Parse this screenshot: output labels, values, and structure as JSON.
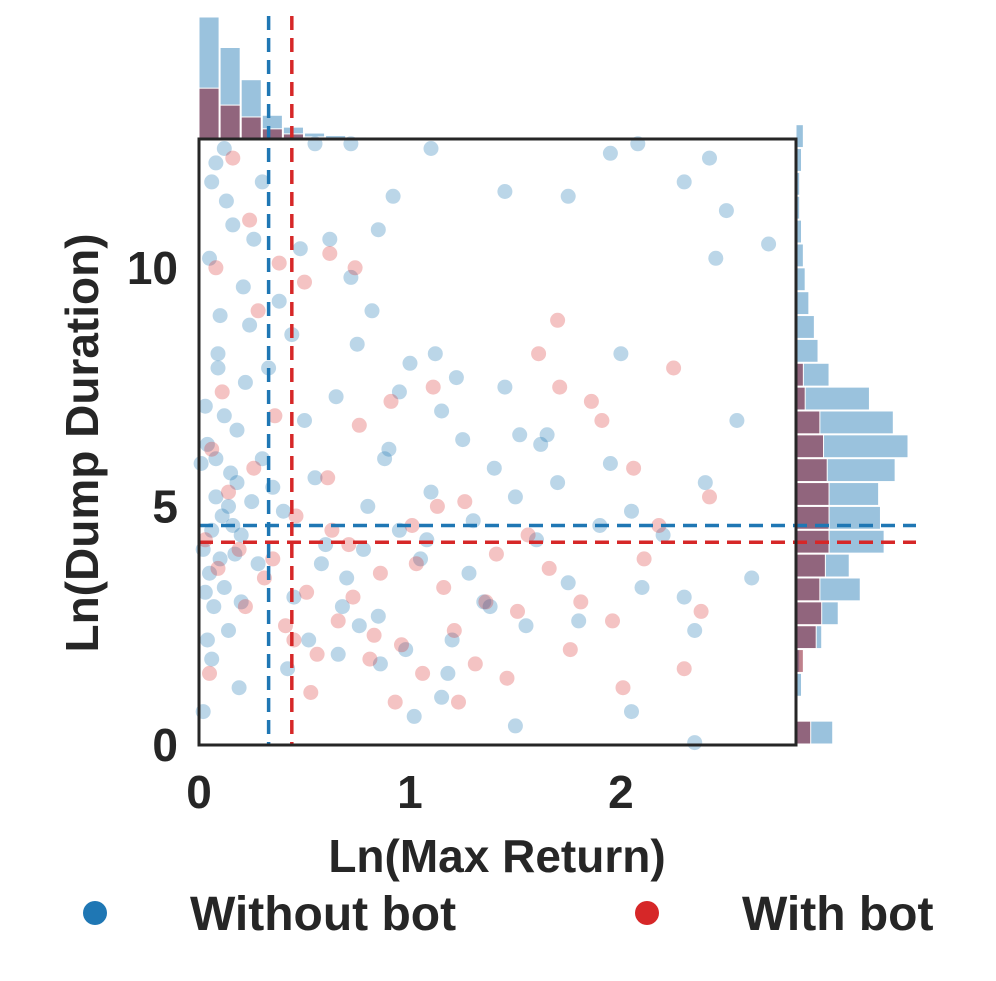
{
  "chart_data": {
    "type": "scatter",
    "title": "",
    "xlabel": "Ln(Max Return)",
    "ylabel": "Ln(Dump Duration)",
    "xlim": [
      0,
      2.83
    ],
    "ylim": [
      0,
      12.7
    ],
    "xticks": [
      {
        "value": 0,
        "label": "0"
      },
      {
        "value": 1,
        "label": "1"
      },
      {
        "value": 2,
        "label": "2"
      }
    ],
    "yticks": [
      {
        "value": 0,
        "label": "0"
      },
      {
        "value": 5,
        "label": "5"
      },
      {
        "value": 10,
        "label": "10"
      }
    ],
    "grid": false,
    "legend_placement": "bottom",
    "marginal_histograms": true,
    "series": [
      {
        "name": "Without bot",
        "color": "#1f77b4",
        "mean_x": 0.33,
        "mean_y": 4.6,
        "points": [
          [
            0.02,
            4.1
          ],
          [
            0.05,
            3.6
          ],
          [
            0.08,
            5.2
          ],
          [
            0.11,
            4.8
          ],
          [
            0.04,
            6.3
          ],
          [
            0.15,
            5.7
          ],
          [
            0.2,
            4.4
          ],
          [
            0.07,
            2.9
          ],
          [
            0.12,
            3.3
          ],
          [
            0.03,
            7.1
          ],
          [
            0.18,
            6.6
          ],
          [
            0.09,
            8.2
          ],
          [
            0.25,
            5.1
          ],
          [
            0.06,
            1.8
          ],
          [
            0.14,
            2.4
          ],
          [
            0.22,
            7.6
          ],
          [
            0.01,
            5.9
          ],
          [
            0.17,
            4.0
          ],
          [
            0.28,
            3.8
          ],
          [
            0.1,
            9.0
          ],
          [
            0.05,
            10.2
          ],
          [
            0.13,
            11.4
          ],
          [
            0.08,
            12.2
          ],
          [
            0.02,
            0.7
          ],
          [
            0.19,
            1.2
          ],
          [
            0.24,
            8.8
          ],
          [
            0.3,
            6.0
          ],
          [
            0.35,
            5.4
          ],
          [
            0.4,
            4.9
          ],
          [
            0.45,
            3.1
          ],
          [
            0.5,
            6.8
          ],
          [
            0.55,
            5.6
          ],
          [
            0.6,
            4.2
          ],
          [
            0.65,
            7.3
          ],
          [
            0.7,
            3.5
          ],
          [
            0.75,
            8.4
          ],
          [
            0.8,
            5.0
          ],
          [
            0.85,
            2.7
          ],
          [
            0.9,
            6.2
          ],
          [
            0.95,
            4.5
          ],
          [
            1.0,
            8.0
          ],
          [
            1.05,
            3.9
          ],
          [
            1.1,
            5.3
          ],
          [
            1.15,
            7.0
          ],
          [
            1.2,
            2.2
          ],
          [
            1.25,
            6.4
          ],
          [
            1.3,
            4.7
          ],
          [
            1.35,
            3.0
          ],
          [
            1.4,
            5.8
          ],
          [
            1.45,
            7.5
          ],
          [
            1.5,
            5.2
          ],
          [
            1.55,
            2.5
          ],
          [
            1.6,
            4.3
          ],
          [
            1.65,
            6.5
          ],
          [
            1.7,
            5.5
          ],
          [
            1.75,
            3.4
          ],
          [
            1.8,
            2.6
          ],
          [
            1.9,
            4.6
          ],
          [
            1.95,
            5.9
          ],
          [
            2.0,
            8.2
          ],
          [
            2.05,
            4.9
          ],
          [
            2.1,
            3.3
          ],
          [
            2.2,
            4.4
          ],
          [
            2.3,
            3.1
          ],
          [
            2.35,
            2.4
          ],
          [
            2.4,
            5.5
          ],
          [
            2.45,
            10.2
          ],
          [
            2.5,
            11.2
          ],
          [
            2.55,
            6.8
          ],
          [
            2.62,
            3.5
          ],
          [
            2.7,
            10.5
          ],
          [
            0.38,
            9.3
          ],
          [
            0.48,
            10.4
          ],
          [
            0.62,
            10.6
          ],
          [
            0.72,
            9.8
          ],
          [
            0.85,
            10.8
          ],
          [
            0.92,
            11.5
          ],
          [
            1.1,
            12.5
          ],
          [
            1.45,
            11.6
          ],
          [
            1.75,
            11.5
          ],
          [
            1.95,
            12.4
          ],
          [
            2.08,
            12.6
          ],
          [
            2.3,
            11.8
          ],
          [
            2.42,
            12.3
          ],
          [
            0.55,
            12.6
          ],
          [
            0.72,
            12.6
          ],
          [
            0.3,
            11.8
          ],
          [
            0.58,
            3.8
          ],
          [
            0.68,
            2.9
          ],
          [
            0.78,
            4.1
          ],
          [
            0.88,
            6.0
          ],
          [
            0.98,
            2.0
          ],
          [
            1.08,
            4.3
          ],
          [
            1.18,
            1.5
          ],
          [
            1.28,
            3.6
          ],
          [
            1.38,
            2.9
          ],
          [
            0.42,
            1.6
          ],
          [
            0.52,
            2.2
          ],
          [
            0.66,
            1.9
          ],
          [
            0.76,
            2.5
          ],
          [
            0.86,
            1.7
          ],
          [
            1.02,
            0.6
          ],
          [
            1.15,
            1.0
          ],
          [
            1.5,
            0.4
          ],
          [
            2.05,
            0.7
          ],
          [
            2.35,
            0.05
          ],
          [
            0.95,
            7.4
          ],
          [
            1.12,
            8.2
          ],
          [
            1.22,
            7.7
          ],
          [
            0.82,
            9.1
          ],
          [
            1.52,
            6.5
          ],
          [
            1.62,
            6.3
          ],
          [
            0.33,
            7.9
          ],
          [
            0.44,
            8.6
          ],
          [
            0.16,
            10.9
          ],
          [
            0.26,
            10.6
          ],
          [
            0.06,
            11.8
          ],
          [
            0.12,
            12.5
          ],
          [
            0.21,
            9.6
          ],
          [
            0.09,
            7.9
          ],
          [
            0.03,
            3.2
          ],
          [
            0.14,
            5.0
          ],
          [
            0.06,
            4.5
          ],
          [
            0.1,
            3.9
          ],
          [
            0.18,
            5.5
          ],
          [
            0.04,
            2.2
          ],
          [
            0.2,
            3.0
          ],
          [
            0.08,
            6.0
          ],
          [
            0.16,
            4.6
          ],
          [
            0.12,
            6.9
          ]
        ]
      },
      {
        "name": "With bot",
        "color": "#d62728",
        "mean_x": 0.44,
        "mean_y": 4.25,
        "points": [
          [
            0.03,
            4.3
          ],
          [
            0.09,
            3.7
          ],
          [
            0.14,
            5.3
          ],
          [
            0.19,
            4.1
          ],
          [
            0.06,
            6.2
          ],
          [
            0.22,
            2.9
          ],
          [
            0.26,
            5.8
          ],
          [
            0.11,
            7.4
          ],
          [
            0.31,
            3.5
          ],
          [
            0.05,
            1.5
          ],
          [
            0.36,
            6.9
          ],
          [
            0.41,
            2.5
          ],
          [
            0.46,
            4.8
          ],
          [
            0.51,
            3.2
          ],
          [
            0.56,
            1.9
          ],
          [
            0.61,
            5.6
          ],
          [
            0.66,
            2.6
          ],
          [
            0.71,
            4.2
          ],
          [
            0.76,
            6.7
          ],
          [
            0.81,
            1.8
          ],
          [
            0.86,
            3.6
          ],
          [
            0.91,
            7.2
          ],
          [
            0.96,
            2.1
          ],
          [
            1.01,
            4.6
          ],
          [
            1.06,
            1.5
          ],
          [
            1.11,
            7.5
          ],
          [
            1.16,
            3.3
          ],
          [
            1.21,
            2.4
          ],
          [
            1.26,
            5.1
          ],
          [
            1.31,
            1.7
          ],
          [
            1.36,
            3.0
          ],
          [
            1.41,
            4.0
          ],
          [
            1.46,
            1.4
          ],
          [
            1.51,
            2.8
          ],
          [
            1.56,
            4.4
          ],
          [
            1.61,
            8.2
          ],
          [
            1.66,
            3.7
          ],
          [
            1.71,
            7.5
          ],
          [
            1.76,
            2.0
          ],
          [
            1.81,
            3.0
          ],
          [
            1.86,
            7.2
          ],
          [
            1.91,
            6.8
          ],
          [
            1.96,
            2.6
          ],
          [
            2.01,
            1.2
          ],
          [
            2.06,
            5.8
          ],
          [
            2.11,
            3.9
          ],
          [
            2.18,
            4.6
          ],
          [
            2.25,
            7.9
          ],
          [
            2.3,
            1.6
          ],
          [
            2.38,
            2.8
          ],
          [
            2.42,
            5.2
          ],
          [
            0.28,
            9.1
          ],
          [
            0.38,
            10.1
          ],
          [
            0.5,
            9.7
          ],
          [
            0.62,
            10.3
          ],
          [
            0.74,
            10.0
          ],
          [
            1.7,
            8.9
          ],
          [
            0.16,
            12.3
          ],
          [
            0.08,
            10.0
          ],
          [
            0.24,
            11.0
          ],
          [
            0.35,
            3.9
          ],
          [
            0.45,
            2.2
          ],
          [
            0.53,
            1.1
          ],
          [
            0.63,
            4.5
          ],
          [
            0.73,
            3.1
          ],
          [
            0.83,
            2.3
          ],
          [
            0.93,
            0.9
          ],
          [
            1.03,
            3.8
          ],
          [
            1.13,
            5.0
          ],
          [
            1.23,
            0.9
          ]
        ]
      }
    ],
    "marginal_x": {
      "bin_width": 0.1,
      "without_bot_counts": [
        720,
        540,
        350,
        140,
        70,
        35,
        20,
        12,
        8,
        6,
        3
      ],
      "with_bot_counts": [
        300,
        200,
        130,
        60,
        30,
        12,
        6,
        3,
        2,
        1,
        0
      ]
    },
    "marginal_y": {
      "bin_width": 0.5,
      "without_bot_counts": [
        40,
        0,
        6,
        4,
        28,
        46,
        70,
        58,
        96,
        92,
        90,
        108,
        122,
        106,
        80,
        36,
        24,
        20,
        14,
        10,
        8,
        6,
        4,
        4,
        6,
        8
      ],
      "with_bot_counts": [
        16,
        0,
        0,
        8,
        22,
        28,
        26,
        32,
        36,
        36,
        36,
        34,
        30,
        26,
        10,
        8,
        0,
        0,
        0,
        0,
        0,
        0,
        0,
        0,
        0,
        0
      ]
    }
  },
  "legend": [
    {
      "label": "Without bot",
      "color": "#1f77b4"
    },
    {
      "label": "With bot",
      "color": "#d62728"
    }
  ]
}
